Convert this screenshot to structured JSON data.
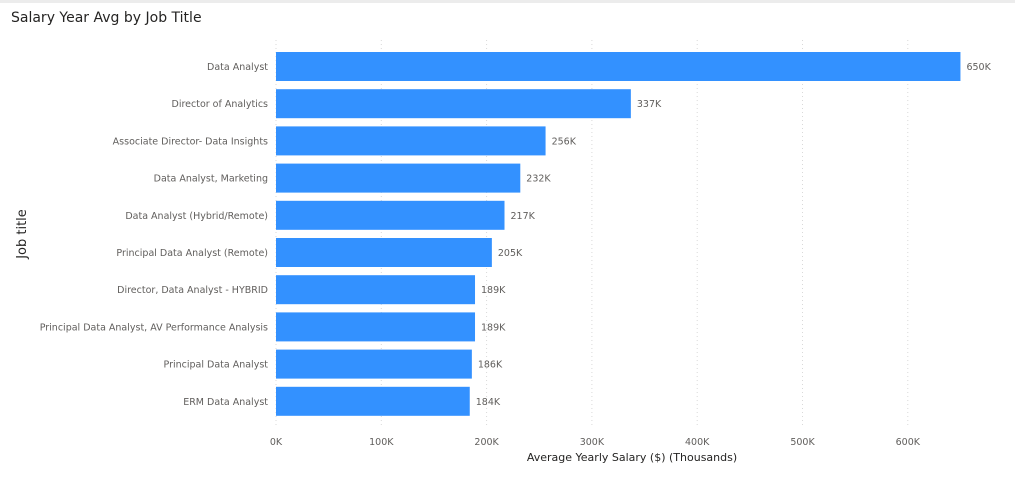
{
  "chart_data": {
    "type": "bar",
    "orientation": "horizontal",
    "title": "Salary Year Avg by Job Title",
    "xlabel": "Average Yearly Salary ($) (Thousands)",
    "ylabel": "Job title",
    "categories": [
      "Data Analyst",
      "Director of Analytics",
      "Associate Director- Data Insights",
      "Data Analyst, Marketing",
      "Data Analyst (Hybrid/Remote)",
      "Principal Data Analyst (Remote)",
      "Director, Data Analyst - HYBRID",
      "Principal Data Analyst, AV Performance Analysis",
      "Principal Data Analyst",
      "ERM Data Analyst"
    ],
    "values": [
      650,
      337,
      256,
      232,
      217,
      205,
      189,
      189,
      186,
      184
    ],
    "data_labels": [
      "650K",
      "337K",
      "256K",
      "232K",
      "217K",
      "205K",
      "189K",
      "189K",
      "186K",
      "184K"
    ],
    "xlim": [
      0,
      650
    ],
    "xticks": [
      0,
      100,
      200,
      300,
      400,
      500,
      600
    ],
    "xtick_labels": [
      "0K",
      "100K",
      "200K",
      "300K",
      "400K",
      "500K",
      "600K"
    ],
    "grid": "vertical-dotted",
    "legend": "none",
    "bar_color": "#3391ff"
  }
}
